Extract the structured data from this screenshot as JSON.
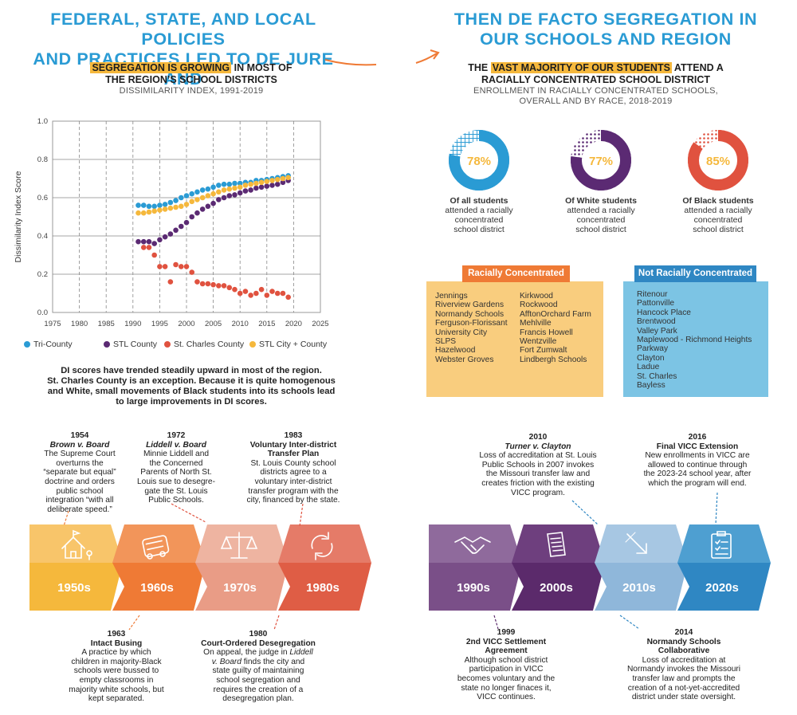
{
  "header": {
    "left_line1": "FEDERAL, STATE, AND LOCAL POLICIES",
    "left_line2": "AND PRACTICES LED TO DE JURE AND",
    "right_line1": "THEN DE FACTO SEGREGATION IN",
    "right_line2": "OUR SCHOOLS AND REGION"
  },
  "left_panel": {
    "highlight": "SEGREGATION IS GROWING",
    "rest_line1": " IN MOST OF",
    "line2": "THE REGION’S SCHOOL DISTRICTS",
    "subtitle": "DISSIMILARITY INDEX, 1991-2019",
    "caption_line1": "DI scores have trended steadily upward in most of the region.",
    "caption_line2": "St. Charles County is an exception. Because it is quite homogenous",
    "caption_line3": "and White, small movements of Black students into its schools lead",
    "caption_line4": "to large improvements in DI scores."
  },
  "chart_data": {
    "type": "scatter",
    "title": "",
    "xlabel": "",
    "ylabel": "Dissimilarity Index Score",
    "xlim": [
      1975,
      2025
    ],
    "ylim": [
      0,
      1.0
    ],
    "x_ticks": [
      "1975",
      "1980",
      "1985",
      "1990",
      "1995",
      "2000",
      "2005",
      "2010",
      "2015",
      "2020",
      "2025"
    ],
    "y_ticks": [
      "0.0",
      "0.2",
      "0.4",
      "0.6",
      "0.8",
      "1.0"
    ],
    "grid": true,
    "legend_position": "bottom",
    "x": [
      1991,
      1992,
      1993,
      1994,
      1995,
      1996,
      1997,
      1998,
      1999,
      2000,
      2001,
      2002,
      2003,
      2004,
      2005,
      2006,
      2007,
      2008,
      2009,
      2010,
      2011,
      2012,
      2013,
      2014,
      2015,
      2016,
      2017,
      2018,
      2019
    ],
    "series": [
      {
        "name": "Tri-County",
        "color": "#2a9bd4",
        "values": [
          0.56,
          0.56,
          0.555,
          0.555,
          0.56,
          0.565,
          0.575,
          0.585,
          0.6,
          0.61,
          0.62,
          0.63,
          0.64,
          0.645,
          0.655,
          0.665,
          0.67,
          0.67,
          0.675,
          0.675,
          0.68,
          0.68,
          0.69,
          0.69,
          0.695,
          0.7,
          0.705,
          0.71,
          0.715
        ]
      },
      {
        "name": "STL County",
        "color": "#5b2a73",
        "values": [
          0.37,
          0.37,
          0.37,
          0.36,
          0.38,
          0.395,
          0.41,
          0.43,
          0.45,
          0.47,
          0.5,
          0.52,
          0.54,
          0.555,
          0.57,
          0.59,
          0.6,
          0.61,
          0.615,
          0.625,
          0.635,
          0.64,
          0.65,
          0.655,
          0.66,
          0.665,
          0.67,
          0.68,
          0.69
        ]
      },
      {
        "name": "St. Charles County",
        "color": "#e0523f",
        "values": [
          null,
          0.34,
          0.34,
          0.3,
          0.24,
          0.24,
          0.16,
          0.25,
          0.24,
          0.24,
          0.21,
          0.16,
          0.15,
          0.15,
          0.145,
          0.14,
          0.14,
          0.13,
          0.12,
          0.1,
          0.11,
          0.09,
          0.1,
          0.12,
          0.09,
          0.11,
          0.1,
          0.1,
          0.08
        ]
      },
      {
        "name": "STL City + County",
        "color": "#f5b83c",
        "values": [
          0.52,
          0.52,
          0.525,
          0.53,
          0.535,
          0.54,
          0.545,
          0.55,
          0.555,
          0.565,
          0.58,
          0.59,
          0.6,
          0.61,
          0.62,
          0.63,
          0.64,
          0.645,
          0.65,
          0.655,
          0.665,
          0.67,
          0.675,
          0.68,
          0.685,
          0.69,
          0.695,
          0.7,
          0.705
        ]
      }
    ]
  },
  "right_panel": {
    "pre": "THE ",
    "highlight": "VAST MAJORITY OF OUR STUDENTS",
    "post_line1": " ATTEND A",
    "line2": "RACIALLY CONCENTRATED SCHOOL DISTRICT",
    "subtitle_line1": "ENROLLMENT IN RACIALLY CONCENTRATED SCHOOLS,",
    "subtitle_line2": "OVERALL AND BY RACE, 2018-2019",
    "donuts": [
      {
        "value": 0.78,
        "percent": "78%",
        "color": "#2a9bd4",
        "bold": "Of all students",
        "text_line1": "attended a racially",
        "text_line2": "concentrated",
        "text_line3": "school district"
      },
      {
        "value": 0.77,
        "percent": "77%",
        "color": "#5b2a73",
        "bold": "Of White students",
        "text_line1": "attended a racially",
        "text_line2": "concentrated",
        "text_line3": "school district"
      },
      {
        "value": 0.85,
        "percent": "85%",
        "color": "#e0523f",
        "bold": "Of Black students",
        "text_line1": "attended a racially",
        "text_line2": "concentrated",
        "text_line3": "school district"
      }
    ],
    "percent_color": "#f5b83c",
    "concentrated": {
      "title": "Racially Concentrated",
      "col1": [
        "Jennings",
        "Riverview Gardens",
        "Normandy Schools",
        "Ferguson-Florissant",
        "University City",
        "SLPS",
        "Hazelwood",
        "Webster Groves"
      ],
      "col2": [
        "Kirkwood",
        "Rockwood",
        "AfftonOrchard Farm",
        "Mehlville",
        "Francis Howell",
        "Wentzville",
        "Fort Zumwalt",
        "Lindbergh Schools"
      ]
    },
    "not_concentrated": {
      "title": "Not Racially Concentrated",
      "items": [
        "Ritenour",
        "Pattonville",
        "Hancock Place",
        "Brentwood",
        "Valley Park",
        "Maplewood - Richmond Heights",
        "Parkway",
        "Clayton",
        "Ladue",
        "St. Charles",
        "Bayless"
      ]
    }
  },
  "timeline": {
    "decades": [
      {
        "label": "1950s",
        "icon": "schoolhouse-icon",
        "top": "#f8c56a",
        "bottom": "#f5b83c"
      },
      {
        "label": "1960s",
        "icon": "bus-icon",
        "top": "#f2955a",
        "bottom": "#ef7a35"
      },
      {
        "label": "1970s",
        "icon": "scales-icon",
        "top": "#eeb4a1",
        "bottom": "#e99c86"
      },
      {
        "label": "1980s",
        "icon": "recycle-icon",
        "top": "#e57b68",
        "bottom": "#df5d45"
      },
      {
        "label": "1990s",
        "icon": "handshake-icon",
        "top": "#8f6a9c",
        "bottom": "#7a4f88"
      },
      {
        "label": "2000s",
        "icon": "documents-icon",
        "top": "#6e3f7e",
        "bottom": "#5b2a6b"
      },
      {
        "label": "2010s",
        "icon": "arrow-icon",
        "top": "#a7c7e3",
        "bottom": "#8fb7da"
      },
      {
        "label": "2020s",
        "icon": "clipboard-icon",
        "top": "#4e9fd1",
        "bottom": "#2f87c3"
      }
    ],
    "events_top": [
      {
        "year": "1954",
        "title": "Brown v. Board",
        "lines": [
          "The Supreme Court",
          "overturns the",
          "“separate but equal”",
          "doctrine and orders",
          "public school",
          "integration “with all",
          "deliberate speed.”"
        ]
      },
      {
        "year": "1972",
        "title": "Liddell v. Board",
        "lines": [
          "Minnie Liddell and",
          "the Concerned",
          "Parents of North St.",
          "Louis sue to desegre-",
          "gate the St. Louis",
          "Public Schools."
        ]
      },
      {
        "year": "1983",
        "title_a": "Voluntary Inter-district",
        "title_b": "Transfer Plan",
        "lines": [
          "St. Louis County school",
          "districts agree to a",
          "voluntary inter-district",
          "transfer program with the",
          "city, financed by the state."
        ]
      },
      {
        "year": "2010",
        "title": "Turner v. Clayton",
        "lines": [
          "Loss of accreditation at St. Louis",
          "Public Schools in 2007 invokes",
          "the Missouri transfer law and",
          "creates friction with the existing",
          "VICC program."
        ]
      },
      {
        "year": "2016",
        "title": "Final VICC Extension",
        "lines": [
          "New enrollments in VICC are",
          "allowed to continue through",
          "the 2023-24 school year, after",
          "which the program will end."
        ]
      }
    ],
    "events_bottom": [
      {
        "year": "1963",
        "title": "Intact Busing",
        "lines": [
          "A practice by which",
          "children in majority-Black",
          "schools were bussed to",
          "empty classrooms in",
          "majority white schools, but",
          "kept separated."
        ]
      },
      {
        "year": "1980",
        "title": "Court-Ordered Desegregation",
        "l1": "On appeal, the judge in ",
        "l1i": "Liddell",
        "l2i": "v. Board",
        "l2": " finds the city and",
        "lines": [
          "state guilty of maintaining",
          "school segregation and",
          "requires the creation of a",
          "desegregation plan."
        ]
      },
      {
        "year": "1999",
        "title_a": "2nd VICC Settlement",
        "title_b": "Agreement",
        "lines": [
          "Although school district",
          "participation in VICC",
          "becomes voluntary and the",
          "state no longer finaces it,",
          "VICC continues."
        ]
      },
      {
        "year": "2014",
        "title_a": "Normandy Schools",
        "title_b": "Collaborative",
        "lines": [
          "Loss of accreditation at",
          "Normandy invokes the Missouri",
          "transfer law and prompts the",
          "creation of a not-yet-accredited",
          "district under state oversight."
        ]
      }
    ]
  }
}
